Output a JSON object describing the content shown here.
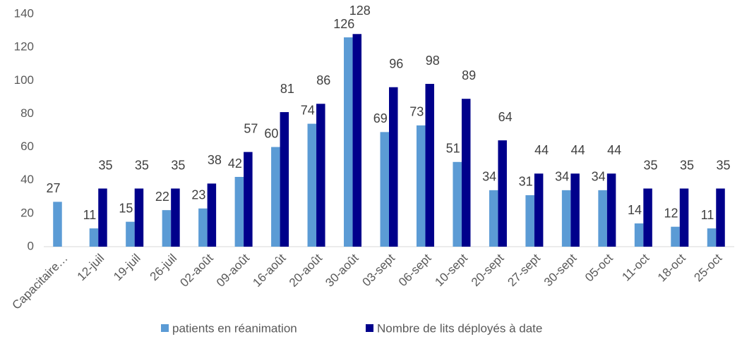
{
  "chart_data": {
    "type": "bar",
    "categories": [
      "Capacitaire…",
      "12-juil",
      "19-juil",
      "26-juil",
      "02-août",
      "09-août",
      "16-août",
      "20-août",
      "30-août",
      "03-sept",
      "06-sept",
      "10-sept",
      "20-sept",
      "27-sept",
      "30-sept",
      "05-oct",
      "11-oct",
      "18-oct",
      "25-oct"
    ],
    "series": [
      {
        "name": "patients en réanimation",
        "color": "#5b9bd5",
        "values": [
          27,
          11,
          15,
          22,
          23,
          42,
          60,
          74,
          126,
          69,
          73,
          51,
          34,
          31,
          34,
          34,
          14,
          12,
          11
        ]
      },
      {
        "name": "Nombre de lits déployés à date",
        "color": "#00008b",
        "values": [
          null,
          35,
          35,
          35,
          38,
          57,
          81,
          86,
          128,
          96,
          98,
          89,
          64,
          44,
          44,
          44,
          35,
          35,
          35
        ]
      }
    ],
    "ylim": [
      0,
      140
    ],
    "yticks": [
      0,
      20,
      40,
      60,
      80,
      100,
      120,
      140
    ],
    "grid": false,
    "legend": "bottom"
  }
}
